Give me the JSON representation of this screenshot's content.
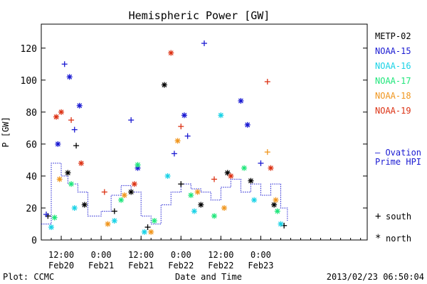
{
  "chart_data": {
    "type": "scatter",
    "title": "Hemispheric Power [GW]",
    "ylabel": "P [GW]",
    "xlabel": "Date and Time",
    "ylim": [
      0,
      135
    ],
    "yticks": [
      0,
      20,
      40,
      60,
      80,
      100,
      120
    ],
    "xlim": [
      "2013-02-19T06:00",
      "2013-02-23T08:00"
    ],
    "xticks": [
      {
        "t": "2013-02-19T12:00",
        "time": "12:00",
        "date": "Feb20"
      },
      {
        "t": "2013-02-20T00:00",
        "time": "0:00",
        "date": "Feb21"
      },
      {
        "t": "2013-02-20T12:00",
        "time": "12:00",
        "date": "Feb21"
      },
      {
        "t": "2013-02-21T00:00",
        "time": "0:00",
        "date": "Feb22"
      },
      {
        "t": "2013-02-21T12:00",
        "time": "12:00",
        "date": "Feb22"
      },
      {
        "t": "2013-02-22T00:00",
        "time": "0:00",
        "date": "Feb23"
      }
    ],
    "series": [
      {
        "name": "METP-02",
        "color": "#000000",
        "points": [
          {
            "t": "2013-02-19T08:00",
            "y": 15,
            "m": "plus"
          },
          {
            "t": "2013-02-19T14:00",
            "y": 42,
            "m": "star"
          },
          {
            "t": "2013-02-19T16:30",
            "y": 59,
            "m": "plus"
          },
          {
            "t": "2013-02-19T19:00",
            "y": 22,
            "m": "star"
          },
          {
            "t": "2013-02-20T04:00",
            "y": 18,
            "m": "plus"
          },
          {
            "t": "2013-02-20T09:00",
            "y": 30,
            "m": "star"
          },
          {
            "t": "2013-02-20T14:00",
            "y": 8,
            "m": "plus"
          },
          {
            "t": "2013-02-20T19:00",
            "y": 97,
            "m": "star"
          },
          {
            "t": "2013-02-21T00:00",
            "y": 35,
            "m": "plus"
          },
          {
            "t": "2013-02-21T06:00",
            "y": 22,
            "m": "star"
          },
          {
            "t": "2013-02-21T14:00",
            "y": 42,
            "m": "star"
          },
          {
            "t": "2013-02-21T21:00",
            "y": 37,
            "m": "star"
          },
          {
            "t": "2013-02-22T04:00",
            "y": 22,
            "m": "star"
          },
          {
            "t": "2013-02-22T07:00",
            "y": 9,
            "m": "plus"
          }
        ]
      },
      {
        "name": "NOAA-15",
        "color": "#1a1ad2",
        "points": [
          {
            "t": "2013-02-19T07:30",
            "y": 16,
            "m": "plus"
          },
          {
            "t": "2013-02-19T11:00",
            "y": 60,
            "m": "star"
          },
          {
            "t": "2013-02-19T13:00",
            "y": 110,
            "m": "plus"
          },
          {
            "t": "2013-02-19T14:30",
            "y": 102,
            "m": "star"
          },
          {
            "t": "2013-02-19T16:00",
            "y": 69,
            "m": "plus"
          },
          {
            "t": "2013-02-19T17:30",
            "y": 84,
            "m": "star"
          },
          {
            "t": "2013-02-20T09:00",
            "y": 75,
            "m": "plus"
          },
          {
            "t": "2013-02-20T11:00",
            "y": 45,
            "m": "star"
          },
          {
            "t": "2013-02-20T22:00",
            "y": 54,
            "m": "plus"
          },
          {
            "t": "2013-02-21T01:00",
            "y": 78,
            "m": "star"
          },
          {
            "t": "2013-02-21T02:00",
            "y": 65,
            "m": "plus"
          },
          {
            "t": "2013-02-21T07:00",
            "y": 123,
            "m": "plus"
          },
          {
            "t": "2013-02-21T18:00",
            "y": 87,
            "m": "star"
          },
          {
            "t": "2013-02-21T20:00",
            "y": 72,
            "m": "star"
          },
          {
            "t": "2013-02-22T00:00",
            "y": 48,
            "m": "plus"
          }
        ]
      },
      {
        "name": "NOAA-16",
        "color": "#19d2e6",
        "points": [
          {
            "t": "2013-02-19T09:00",
            "y": 8,
            "m": "star"
          },
          {
            "t": "2013-02-19T16:00",
            "y": 20,
            "m": "star"
          },
          {
            "t": "2013-02-20T04:00",
            "y": 12,
            "m": "star"
          },
          {
            "t": "2013-02-20T13:00",
            "y": 5,
            "m": "star"
          },
          {
            "t": "2013-02-20T20:00",
            "y": 40,
            "m": "star"
          },
          {
            "t": "2013-02-21T04:00",
            "y": 18,
            "m": "star"
          },
          {
            "t": "2013-02-21T12:00",
            "y": 78,
            "m": "star"
          },
          {
            "t": "2013-02-21T22:00",
            "y": 25,
            "m": "star"
          },
          {
            "t": "2013-02-22T06:00",
            "y": 10,
            "m": "star"
          }
        ]
      },
      {
        "name": "NOAA-17",
        "color": "#1ee67a",
        "points": [
          {
            "t": "2013-02-19T10:00",
            "y": 14,
            "m": "star"
          },
          {
            "t": "2013-02-19T15:00",
            "y": 35,
            "m": "star"
          },
          {
            "t": "2013-02-20T06:00",
            "y": 25,
            "m": "star"
          },
          {
            "t": "2013-02-20T11:00",
            "y": 47,
            "m": "star"
          },
          {
            "t": "2013-02-20T16:00",
            "y": 12,
            "m": "star"
          },
          {
            "t": "2013-02-21T03:00",
            "y": 28,
            "m": "star"
          },
          {
            "t": "2013-02-21T10:00",
            "y": 15,
            "m": "star"
          },
          {
            "t": "2013-02-21T19:00",
            "y": 45,
            "m": "star"
          },
          {
            "t": "2013-02-22T05:00",
            "y": 18,
            "m": "star"
          }
        ]
      },
      {
        "name": "NOAA-18",
        "color": "#f0961e",
        "points": [
          {
            "t": "2013-02-19T11:30",
            "y": 38,
            "m": "star"
          },
          {
            "t": "2013-02-20T02:00",
            "y": 10,
            "m": "star"
          },
          {
            "t": "2013-02-20T07:00",
            "y": 28,
            "m": "star"
          },
          {
            "t": "2013-02-20T15:00",
            "y": 5,
            "m": "star"
          },
          {
            "t": "2013-02-20T23:00",
            "y": 62,
            "m": "star"
          },
          {
            "t": "2013-02-21T05:00",
            "y": 30,
            "m": "star"
          },
          {
            "t": "2013-02-21T13:00",
            "y": 20,
            "m": "star"
          },
          {
            "t": "2013-02-22T02:00",
            "y": 55,
            "m": "plus"
          },
          {
            "t": "2013-02-22T04:30",
            "y": 25,
            "m": "star"
          }
        ]
      },
      {
        "name": "NOAA-19",
        "color": "#dc3214",
        "points": [
          {
            "t": "2013-02-19T10:30",
            "y": 77,
            "m": "star"
          },
          {
            "t": "2013-02-19T12:00",
            "y": 80,
            "m": "star"
          },
          {
            "t": "2013-02-19T15:00",
            "y": 75,
            "m": "plus"
          },
          {
            "t": "2013-02-19T18:00",
            "y": 48,
            "m": "star"
          },
          {
            "t": "2013-02-20T01:00",
            "y": 30,
            "m": "plus"
          },
          {
            "t": "2013-02-20T10:00",
            "y": 35,
            "m": "star"
          },
          {
            "t": "2013-02-20T21:00",
            "y": 117,
            "m": "star"
          },
          {
            "t": "2013-02-21T00:00",
            "y": 71,
            "m": "plus"
          },
          {
            "t": "2013-02-21T10:00",
            "y": 38,
            "m": "plus"
          },
          {
            "t": "2013-02-21T15:00",
            "y": 40,
            "m": "star"
          },
          {
            "t": "2013-02-22T02:00",
            "y": 99,
            "m": "plus"
          },
          {
            "t": "2013-02-22T03:00",
            "y": 45,
            "m": "star"
          }
        ]
      }
    ],
    "ovation": {
      "name": "Ovation Prime HPI",
      "color": "#1a1ad2",
      "label_lines": [
        "– Ovation",
        "Prime HPI"
      ],
      "t": [
        "2013-02-19T06:00",
        "2013-02-19T09:00",
        "2013-02-19T12:00",
        "2013-02-19T14:00",
        "2013-02-19T17:00",
        "2013-02-19T20:00",
        "2013-02-20T00:00",
        "2013-02-20T03:00",
        "2013-02-20T06:00",
        "2013-02-20T09:00",
        "2013-02-20T12:00",
        "2013-02-20T15:00",
        "2013-02-20T18:00",
        "2013-02-20T21:00",
        "2013-02-21T00:00",
        "2013-02-21T03:00",
        "2013-02-21T06:00",
        "2013-02-21T09:00",
        "2013-02-21T12:00",
        "2013-02-21T15:00",
        "2013-02-21T18:00",
        "2013-02-21T21:00",
        "2013-02-22T00:00",
        "2013-02-22T03:00",
        "2013-02-22T06:00",
        "2013-02-22T08:00"
      ],
      "y": [
        10,
        48,
        40,
        35,
        30,
        15,
        18,
        28,
        34,
        30,
        15,
        10,
        22,
        30,
        35,
        32,
        30,
        25,
        33,
        38,
        30,
        35,
        28,
        35,
        20,
        12
      ]
    },
    "legend": {
      "position": "right",
      "entries": [
        "METP-02",
        "NOAA-15",
        "NOAA-16",
        "NOAA-17",
        "NOAA-18",
        "NOAA-19"
      ],
      "marker_key": [
        {
          "symbol": "+",
          "label": "south"
        },
        {
          "symbol": "*",
          "label": "north"
        }
      ]
    },
    "grid": false
  },
  "footer": {
    "left": "Plot: CCMC",
    "right": "2013/02/23 06:50:04"
  }
}
